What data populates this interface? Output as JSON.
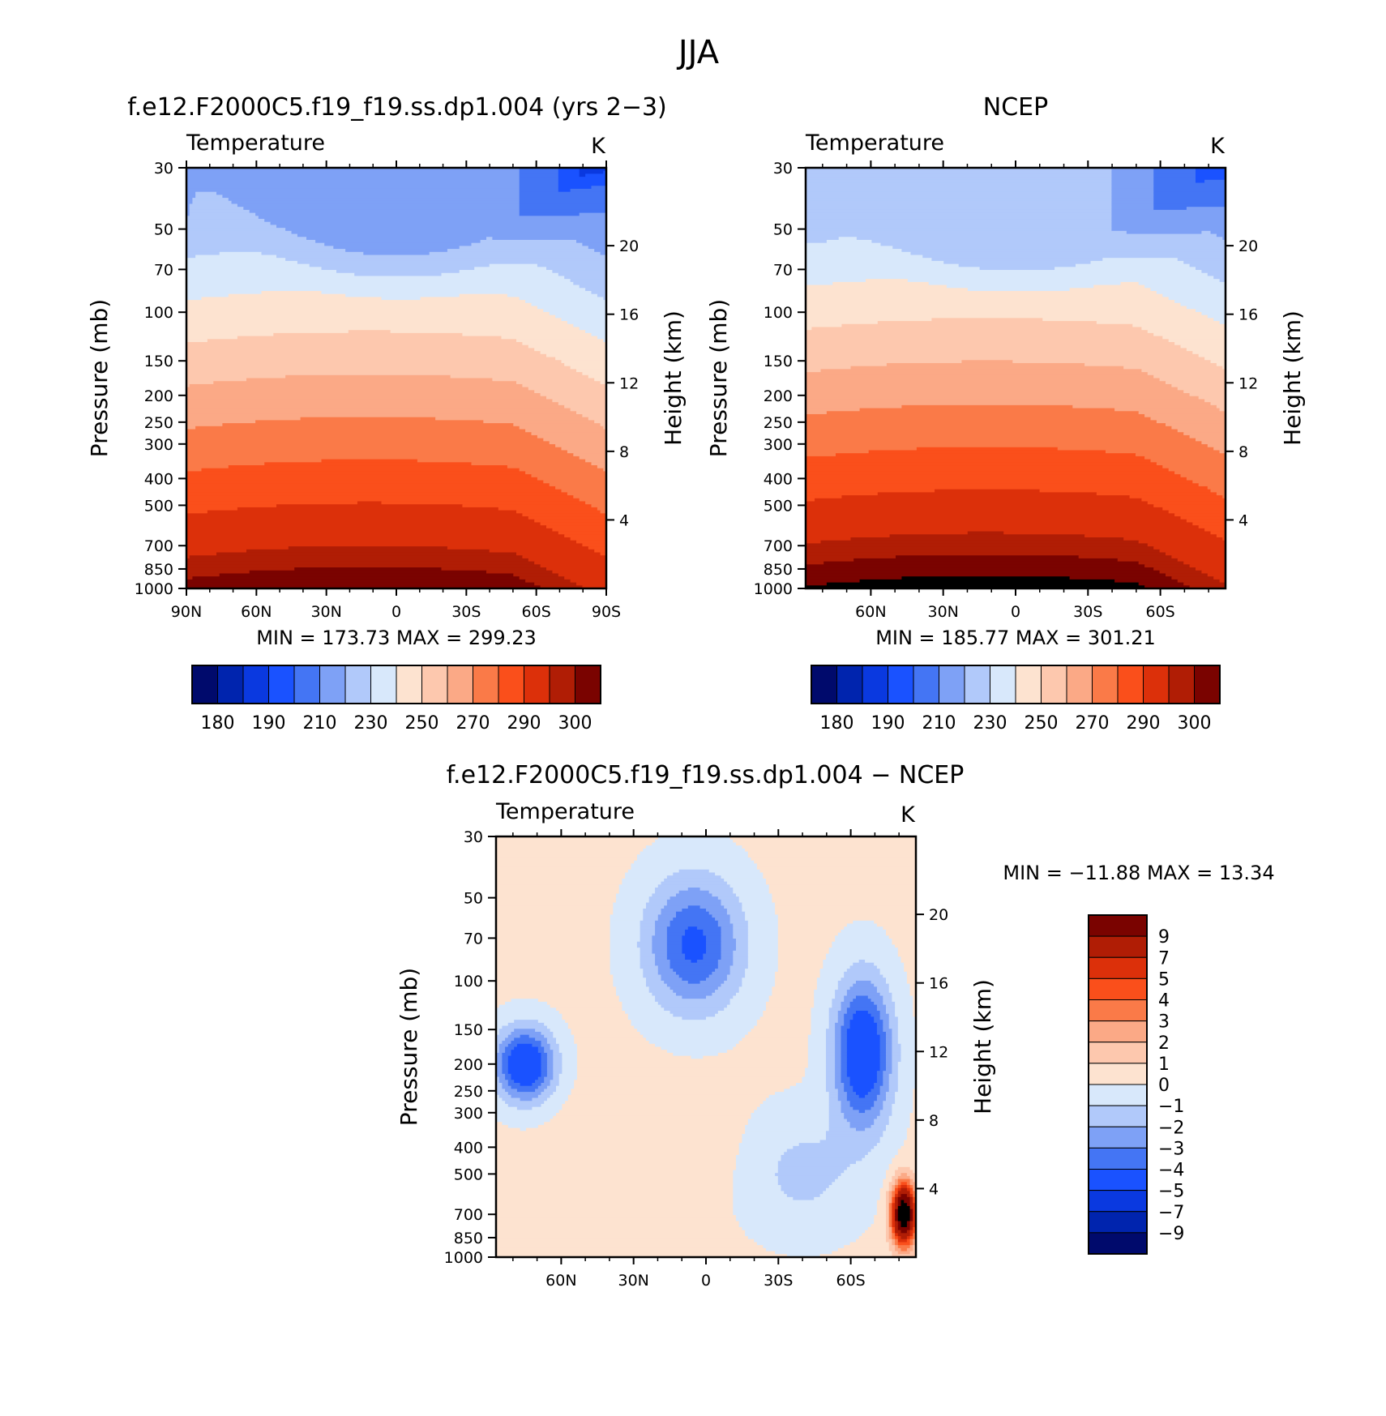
{
  "figure_title": "JJA",
  "colors": {
    "abs_palette": [
      "#000a6c",
      "#0024ae",
      "#0a39e0",
      "#1a52ff",
      "#4475f4",
      "#7ea1f6",
      "#b1c9fa",
      "#d8e8fb",
      "#fde3d0",
      "#fdc8ae",
      "#fba986",
      "#fa7a48",
      "#fa4f1b",
      "#dc300a",
      "#b01d05",
      "#7a0300"
    ],
    "diff_palette": [
      "#000a6c",
      "#0024ae",
      "#0a39e0",
      "#1a52ff",
      "#4475f4",
      "#7ea1f6",
      "#b1c9fa",
      "#d8e8fb",
      "#fde3d0",
      "#fdc8ae",
      "#fba986",
      "#fa7a48",
      "#fa4f1b",
      "#dc300a",
      "#b01d05",
      "#7a0300"
    ]
  },
  "chart_data": [
    {
      "id": "panel-model",
      "type": "heatmap",
      "title": "f.e12.F2000C5.f19_f19.ss.dp1.004 (yrs 2-3)",
      "var_label": "Temperature",
      "units": "K",
      "ylabel": "Pressure (mb)",
      "y2label": "Height (km)",
      "x_ticks": [
        90,
        60,
        30,
        0,
        -30,
        -60,
        -90
      ],
      "x_tick_labels": [
        "90N",
        "60N",
        "30N",
        "0",
        "30S",
        "60S",
        "90S"
      ],
      "y_ticks": [
        30,
        50,
        70,
        100,
        150,
        200,
        250,
        300,
        400,
        500,
        700,
        850,
        1000
      ],
      "y2_ticks": [
        20,
        16,
        12,
        8,
        4
      ],
      "xlim": [
        90,
        -90
      ],
      "ylim": [
        1000,
        30
      ],
      "stats": {
        "min": "MIN = 173.73",
        "max": "MAX = 299.23"
      },
      "colorbar_levels": [
        175,
        180,
        185,
        190,
        200,
        210,
        220,
        230,
        240,
        250,
        260,
        270,
        280,
        290,
        295,
        300
      ],
      "colorbar_labels": [
        "180",
        "190",
        "210",
        "230",
        "250",
        "270",
        "290",
        "300"
      ]
    },
    {
      "id": "panel-obs",
      "type": "heatmap",
      "title": "NCEP",
      "var_label": "Temperature",
      "units": "K",
      "ylabel": "Pressure (mb)",
      "y2label": "Height (km)",
      "x_ticks": [
        60,
        30,
        0,
        -30,
        -60
      ],
      "x_tick_labels": [
        "60N",
        "30N",
        "0",
        "30S",
        "60S"
      ],
      "y_ticks": [
        30,
        50,
        70,
        100,
        150,
        200,
        250,
        300,
        400,
        500,
        700,
        850,
        1000
      ],
      "y2_ticks": [
        20,
        16,
        12,
        8,
        4
      ],
      "xlim": [
        87,
        -87
      ],
      "ylim": [
        1000,
        30
      ],
      "stats": {
        "min": "MIN = 185.77",
        "max": "MAX = 301.21"
      },
      "colorbar_levels": [
        175,
        180,
        185,
        190,
        200,
        210,
        220,
        230,
        240,
        250,
        260,
        270,
        280,
        290,
        295,
        300
      ],
      "colorbar_labels": [
        "180",
        "190",
        "210",
        "230",
        "250",
        "270",
        "290",
        "300"
      ]
    },
    {
      "id": "panel-diff",
      "type": "heatmap",
      "title": "f.e12.F2000C5.f19_f19.ss.dp1.004 - NCEP",
      "var_label": "Temperature",
      "units": "K",
      "ylabel": "Pressure (mb)",
      "y2label": "Height (km)",
      "x_ticks": [
        60,
        30,
        0,
        -30,
        -60
      ],
      "x_tick_labels": [
        "60N",
        "30N",
        "0",
        "30S",
        "60S"
      ],
      "y_ticks": [
        30,
        50,
        70,
        100,
        150,
        200,
        250,
        300,
        400,
        500,
        700,
        850,
        1000
      ],
      "y2_ticks": [
        20,
        16,
        12,
        8,
        4
      ],
      "xlim": [
        87,
        -87
      ],
      "ylim": [
        1000,
        30
      ],
      "stats": {
        "min": "MIN = -11.88",
        "max": "MAX = 13.34"
      },
      "colorbar_levels": [
        -10,
        -9,
        -7,
        -5,
        -4,
        -3,
        -2,
        -1,
        0,
        1,
        2,
        3,
        4,
        5,
        7,
        9
      ],
      "colorbar_labels": [
        "9",
        "7",
        "5",
        "4",
        "3",
        "2",
        "1",
        "0",
        "-1",
        "-2",
        "-3",
        "-4",
        "-5",
        "-7",
        "-9"
      ]
    }
  ]
}
